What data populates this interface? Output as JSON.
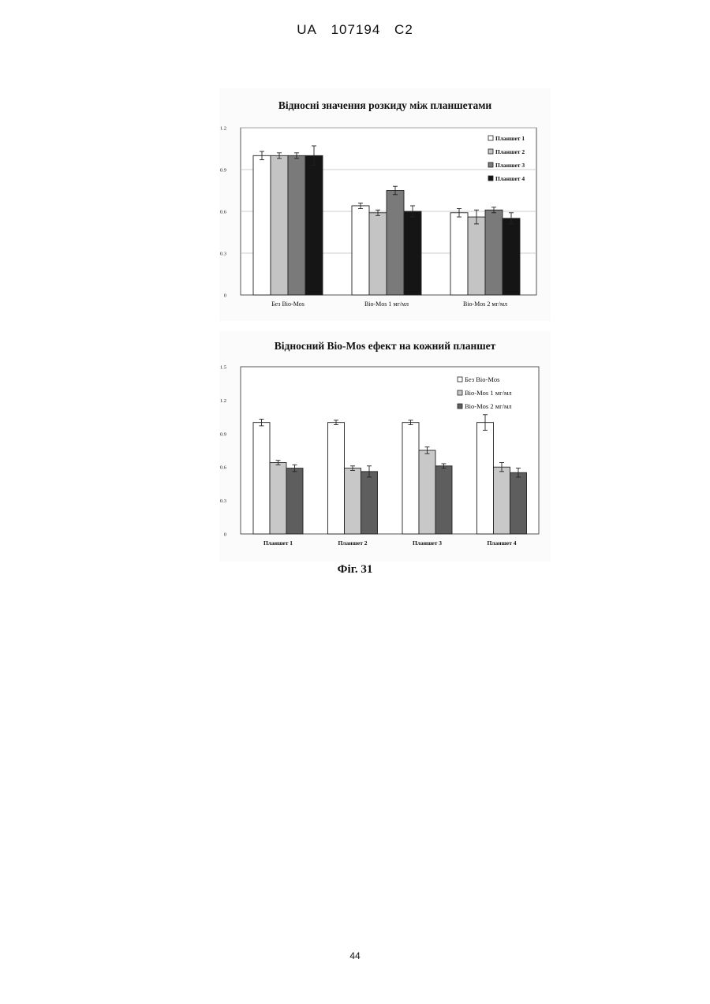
{
  "header": {
    "country": "UA",
    "number": "107194",
    "kind": "C2"
  },
  "figure_caption": "Фіг. 31",
  "page_number": "44",
  "chart_data": [
    {
      "type": "bar",
      "title": "Відносні значення розкиду між планшетами",
      "categories": [
        "Без Bio-Mos",
        "Bio-Mos 1 мг/мл",
        "Bio-Mos 2 мг/мл"
      ],
      "series": [
        {
          "name": "Планшет 1",
          "values": [
            1.0,
            0.64,
            0.59
          ],
          "errors": [
            0.03,
            0.02,
            0.03
          ],
          "color": "#ffffff"
        },
        {
          "name": "Планшет 2",
          "values": [
            1.0,
            0.59,
            0.56
          ],
          "errors": [
            0.02,
            0.02,
            0.05
          ],
          "color": "#c4c4c4"
        },
        {
          "name": "Планшет 3",
          "values": [
            1.0,
            0.75,
            0.61
          ],
          "errors": [
            0.02,
            0.03,
            0.02
          ],
          "color": "#7a7a7a"
        },
        {
          "name": "Планшет 4",
          "values": [
            1.0,
            0.6,
            0.55
          ],
          "errors": [
            0.07,
            0.04,
            0.04
          ],
          "color": "#151515"
        }
      ],
      "ylim": [
        0,
        1.2
      ],
      "yticks": [
        "0",
        "0.3",
        "0.6",
        "0.9",
        "1.2"
      ],
      "grid": true,
      "legend_position": "top-right"
    },
    {
      "type": "bar",
      "title": "Відносний Bio-Mos ефект на кожний планшет",
      "categories": [
        "Планшет 1",
        "Планшет 2",
        "Планшет 3",
        "Планшет 4"
      ],
      "series": [
        {
          "name": "Без Bio-Mos",
          "values": [
            1.0,
            1.0,
            1.0,
            1.0
          ],
          "errors": [
            0.03,
            0.02,
            0.02,
            0.07
          ],
          "color": "#ffffff"
        },
        {
          "name": "Bio-Mos 1 мг/мл",
          "values": [
            0.64,
            0.59,
            0.75,
            0.6
          ],
          "errors": [
            0.02,
            0.02,
            0.03,
            0.04
          ],
          "color": "#c8c8c8"
        },
        {
          "name": "Bio-Mos 2 мг/мл",
          "values": [
            0.59,
            0.56,
            0.61,
            0.55
          ],
          "errors": [
            0.03,
            0.05,
            0.02,
            0.04
          ],
          "color": "#5e5e5e"
        }
      ],
      "ylim": [
        0,
        1.5
      ],
      "yticks": [
        "0",
        "0.3",
        "0.6",
        "0.9",
        "1.2",
        "1.5"
      ],
      "grid": false,
      "legend_position": "top-right"
    }
  ]
}
